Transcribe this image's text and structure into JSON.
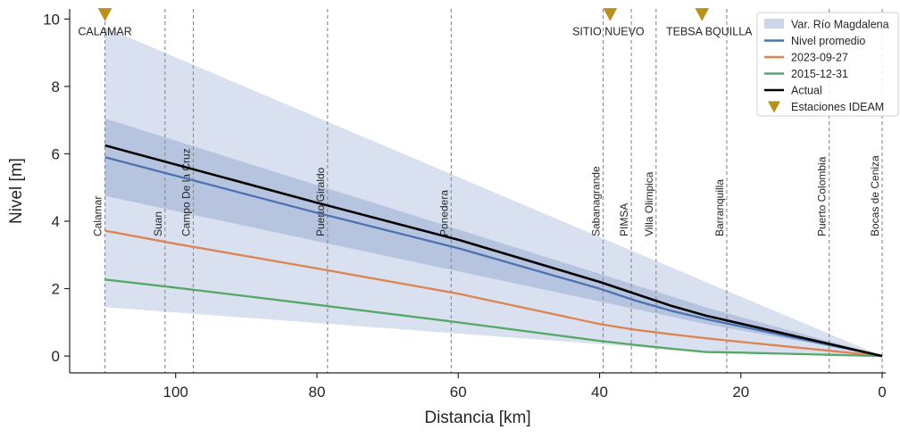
{
  "chart_data": {
    "type": "line",
    "xlabel": "Distancia [km]",
    "ylabel": "Nivel [m]",
    "xlim": [
      115,
      -0.5
    ],
    "ylim": [
      -0.5,
      10.3
    ],
    "x_ticks": [
      100,
      80,
      60,
      40,
      20,
      0
    ],
    "y_ticks": [
      0,
      2,
      4,
      6,
      8,
      10
    ],
    "x_tick_labels": [
      "100",
      "80",
      "60",
      "40",
      "20",
      "0"
    ],
    "y_tick_labels": [
      "0",
      "2",
      "4",
      "6",
      "8",
      "10"
    ],
    "bands": [
      {
        "name": "Var. Río Magdalena",
        "color": "#ccd6ea",
        "opacity": 0.75,
        "upper_x": [
          110,
          25,
          0
        ],
        "upper_y": [
          9.75,
          2.2,
          0
        ],
        "lower_x": [
          110,
          25,
          0
        ],
        "lower_y": [
          1.45,
          0.12,
          0
        ]
      },
      {
        "name": "",
        "color": "#a9bbdb",
        "opacity": 0.75,
        "upper_x": [
          110,
          25,
          0
        ],
        "upper_y": [
          7.05,
          1.45,
          0
        ],
        "lower_x": [
          110,
          25,
          0
        ],
        "lower_y": [
          4.75,
          0.95,
          0
        ]
      }
    ],
    "series": [
      {
        "name": "Nivel promedio",
        "color": "#4c72b0",
        "x": [
          110,
          80,
          60,
          40,
          35,
          30,
          25,
          0
        ],
        "y": [
          5.9,
          4.25,
          3.2,
          2.0,
          1.65,
          1.35,
          1.1,
          0
        ]
      },
      {
        "name": "2023-09-27",
        "color": "#dd8452",
        "x": [
          110,
          100,
          80,
          60,
          40,
          35,
          30,
          25,
          20,
          0
        ],
        "y": [
          3.72,
          3.33,
          2.6,
          1.85,
          0.95,
          0.78,
          0.65,
          0.53,
          0.42,
          0
        ]
      },
      {
        "name": "2015-12-31",
        "color": "#55a868",
        "x": [
          110,
          100,
          80,
          60,
          40,
          35,
          30,
          25,
          20,
          0
        ],
        "y": [
          2.27,
          2.03,
          1.52,
          1.0,
          0.45,
          0.33,
          0.22,
          0.12,
          0.1,
          0
        ]
      },
      {
        "name": "Actual",
        "color": "#000000",
        "x": [
          110,
          80,
          60,
          40,
          35,
          30,
          25,
          0
        ],
        "y": [
          6.25,
          4.55,
          3.45,
          2.2,
          1.85,
          1.5,
          1.2,
          0
        ]
      }
    ],
    "locations": [
      {
        "name": "Calamar",
        "x": 110
      },
      {
        "name": "Suan",
        "x": 101.5
      },
      {
        "name": "Campo De la Cruz",
        "x": 97.5
      },
      {
        "name": "Puerto Giraldo",
        "x": 78.5
      },
      {
        "name": "Ponedera",
        "x": 61
      },
      {
        "name": "Sabanagrande",
        "x": 39.5
      },
      {
        "name": "PIMSA",
        "x": 35.5
      },
      {
        "name": "Villa Olimpica",
        "x": 32
      },
      {
        "name": "Barranquilla",
        "x": 22
      },
      {
        "name": "Puerto Colombia",
        "x": 7.5
      },
      {
        "name": "Bocas de Ceniza",
        "x": 0
      }
    ],
    "stations": {
      "name": "Estaciones IDEAM",
      "color": "#b8901e",
      "points": [
        {
          "name": "CALAMAR",
          "x": 110,
          "y": 10.15
        },
        {
          "name": "SITIO NUEVO",
          "x": 38.5,
          "y": 10.15
        },
        {
          "name": "TEBSA BQUILLA",
          "x": 25.5,
          "y": 10.15
        }
      ]
    },
    "legend": {
      "position": "top-right",
      "items": [
        {
          "label": "Var. Río Magdalena",
          "kind": "patch",
          "color": "#ccd6ea"
        },
        {
          "label": "Nivel promedio",
          "kind": "line",
          "color": "#4c72b0"
        },
        {
          "label": "2023-09-27",
          "kind": "line",
          "color": "#dd8452"
        },
        {
          "label": "2015-12-31",
          "kind": "line",
          "color": "#55a868"
        },
        {
          "label": "Actual",
          "kind": "line",
          "color": "#000000"
        },
        {
          "label": "Estaciones IDEAM",
          "kind": "marker",
          "color": "#b8901e"
        }
      ]
    },
    "grid": false
  }
}
